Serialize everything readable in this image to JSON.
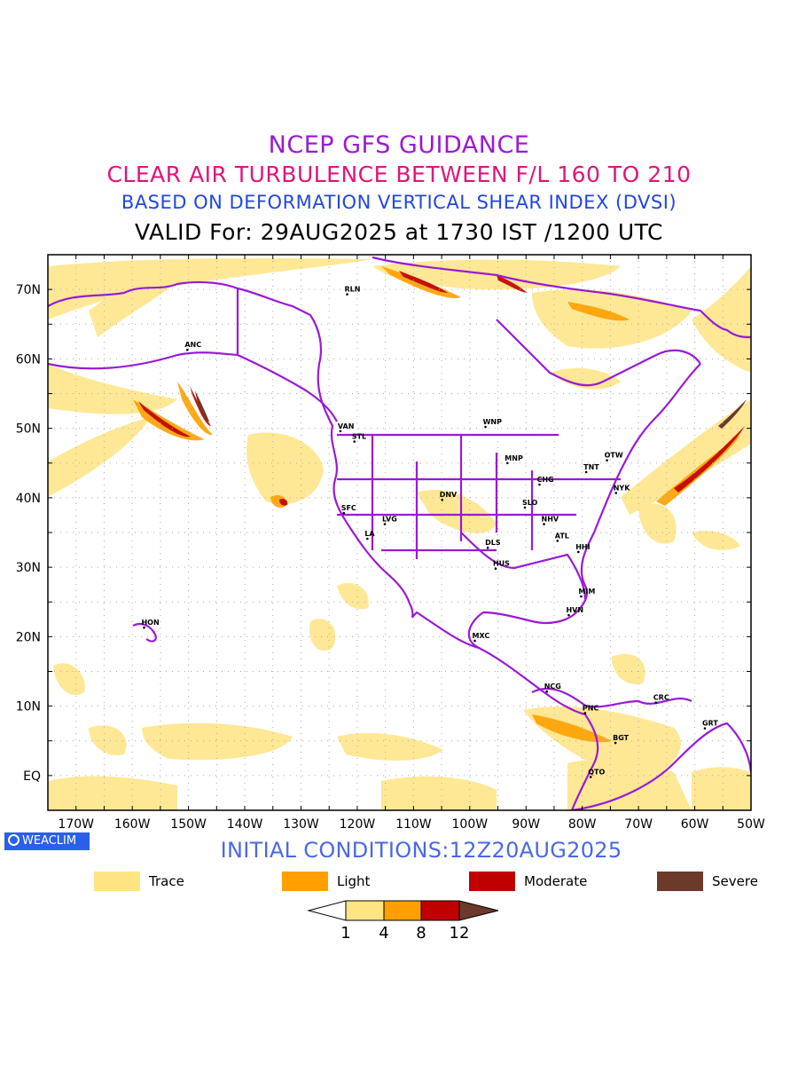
{
  "header": {
    "line1": "NCEP GFS GUIDANCE",
    "line2": "CLEAR AIR TURBULENCE BETWEEN F/L 160 TO 210",
    "line3": "BASED ON DEFORMATION VERTICAL SHEAR INDEX (DVSI)",
    "line4": "VALID For: 29AUG2025 at 1730 IST /1200 UTC"
  },
  "axes": {
    "lat_labels": [
      "70N",
      "60N",
      "50N",
      "40N",
      "30N",
      "20N",
      "10N",
      "EQ"
    ],
    "lon_labels": [
      "170W",
      "160W",
      "150W",
      "140W",
      "130W",
      "120W",
      "110W",
      "100W",
      "90W",
      "80W",
      "70W",
      "60W",
      "50W"
    ]
  },
  "stations": [
    {
      "name": "RLN",
      "lon": -121.8,
      "lat": 69.3
    },
    {
      "name": "ANC",
      "lon": -150.2,
      "lat": 61.3
    },
    {
      "name": "VAN",
      "lon": -123.0,
      "lat": 49.6
    },
    {
      "name": "STL",
      "lon": -120.5,
      "lat": 48.1
    },
    {
      "name": "WNP",
      "lon": -97.2,
      "lat": 50.2
    },
    {
      "name": "MNP",
      "lon": -93.3,
      "lat": 45.0
    },
    {
      "name": "TNT",
      "lon": -79.3,
      "lat": 43.7
    },
    {
      "name": "OTW",
      "lon": -75.6,
      "lat": 45.4
    },
    {
      "name": "CHG",
      "lon": -87.6,
      "lat": 41.9
    },
    {
      "name": "NYK",
      "lon": -74.0,
      "lat": 40.7
    },
    {
      "name": "DNV",
      "lon": -104.9,
      "lat": 39.7
    },
    {
      "name": "SFC",
      "lon": -122.4,
      "lat": 37.8
    },
    {
      "name": "SLO",
      "lon": -90.2,
      "lat": 38.6
    },
    {
      "name": "LVG",
      "lon": -115.1,
      "lat": 36.2
    },
    {
      "name": "NHV",
      "lon": -86.8,
      "lat": 36.2
    },
    {
      "name": "LA",
      "lon": -118.2,
      "lat": 34.1
    },
    {
      "name": "ATL",
      "lon": -84.4,
      "lat": 33.8
    },
    {
      "name": "DLS",
      "lon": -96.8,
      "lat": 32.8
    },
    {
      "name": "HHI",
      "lon": -80.7,
      "lat": 32.2
    },
    {
      "name": "HUS",
      "lon": -95.4,
      "lat": 29.8
    },
    {
      "name": "MIM",
      "lon": -80.2,
      "lat": 25.8
    },
    {
      "name": "HVN",
      "lon": -82.4,
      "lat": 23.1
    },
    {
      "name": "HON",
      "lon": -157.9,
      "lat": 21.3
    },
    {
      "name": "MXC",
      "lon": -99.1,
      "lat": 19.4
    },
    {
      "name": "NCG",
      "lon": -86.3,
      "lat": 12.1
    },
    {
      "name": "CRC",
      "lon": -66.9,
      "lat": 10.5
    },
    {
      "name": "PNC",
      "lon": -79.5,
      "lat": 9.0
    },
    {
      "name": "GRT",
      "lon": -58.2,
      "lat": 6.8
    },
    {
      "name": "BGT",
      "lon": -74.1,
      "lat": 4.7
    },
    {
      "name": "QTO",
      "lon": -78.5,
      "lat": -0.2
    }
  ],
  "footer": {
    "badge": "WEACLIM",
    "initial_conditions": "INITIAL CONDITIONS:12Z20AUG2025"
  },
  "legend": {
    "items": [
      {
        "label": "Trace",
        "color": "#ffe483"
      },
      {
        "label": "Light",
        "color": "#ffa000"
      },
      {
        "label": "Moderate",
        "color": "#c00000"
      },
      {
        "label": "Severe",
        "color": "#6b3a2a"
      }
    ],
    "colorbar_ticks": [
      "1",
      "4",
      "8",
      "12"
    ]
  },
  "colors": {
    "border": "#9a1ad6",
    "trace": "#ffe483",
    "light": "#ffa000",
    "moderate": "#c00000",
    "severe": "#6b3a2a"
  }
}
